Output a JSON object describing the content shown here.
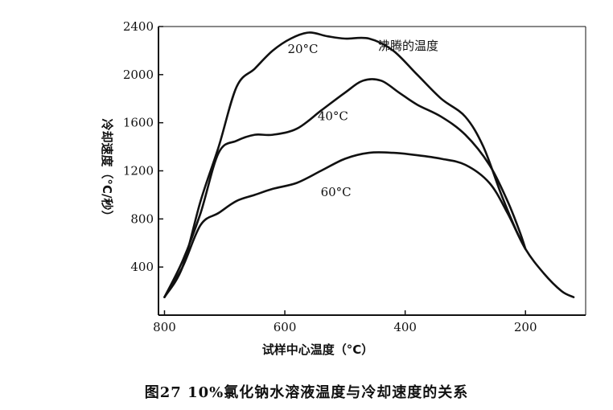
{
  "chart_data": {
    "type": "line",
    "caption": "图27   10%氯化钠水溶液温度与冷却速度的关系",
    "xlabel": "试样中心温度（°C）",
    "ylabel": "冷却速度（°C/秒）",
    "x_ticks": [
      "800",
      "600",
      "400",
      "200"
    ],
    "y_ticks": [
      "400",
      "800",
      "1200",
      "1600",
      "2000",
      "2400"
    ],
    "xlim": [
      100,
      810
    ],
    "ylim": [
      0,
      2400
    ],
    "x_reversed": true,
    "grid": false,
    "annotation": "沸腾的温度",
    "series": [
      {
        "name": "20°C",
        "x": [
          800,
          770,
          740,
          710,
          680,
          650,
          620,
          590,
          560,
          530,
          500,
          460,
          420,
          380,
          340,
          300,
          270,
          240,
          215,
          200
        ],
        "y": [
          150,
          400,
          950,
          1400,
          1900,
          2050,
          2200,
          2300,
          2350,
          2320,
          2300,
          2300,
          2200,
          2000,
          1800,
          1650,
          1400,
          1000,
          700,
          550
        ]
      },
      {
        "name": "40°C",
        "x": [
          800,
          770,
          740,
          710,
          680,
          650,
          620,
          580,
          540,
          500,
          470,
          440,
          410,
          380,
          340,
          300,
          260,
          230,
          210,
          200
        ],
        "y": [
          150,
          450,
          850,
          1350,
          1450,
          1500,
          1500,
          1550,
          1700,
          1850,
          1950,
          1950,
          1850,
          1750,
          1650,
          1500,
          1250,
          950,
          700,
          550
        ]
      },
      {
        "name": "60°C",
        "x": [
          800,
          770,
          740,
          710,
          680,
          650,
          620,
          580,
          540,
          500,
          460,
          420,
          380,
          340,
          300,
          260,
          230,
          200,
          170,
          140,
          120
        ],
        "y": [
          150,
          400,
          750,
          850,
          950,
          1000,
          1050,
          1100,
          1200,
          1300,
          1350,
          1350,
          1330,
          1300,
          1250,
          1100,
          850,
          550,
          350,
          200,
          150
        ]
      }
    ]
  }
}
